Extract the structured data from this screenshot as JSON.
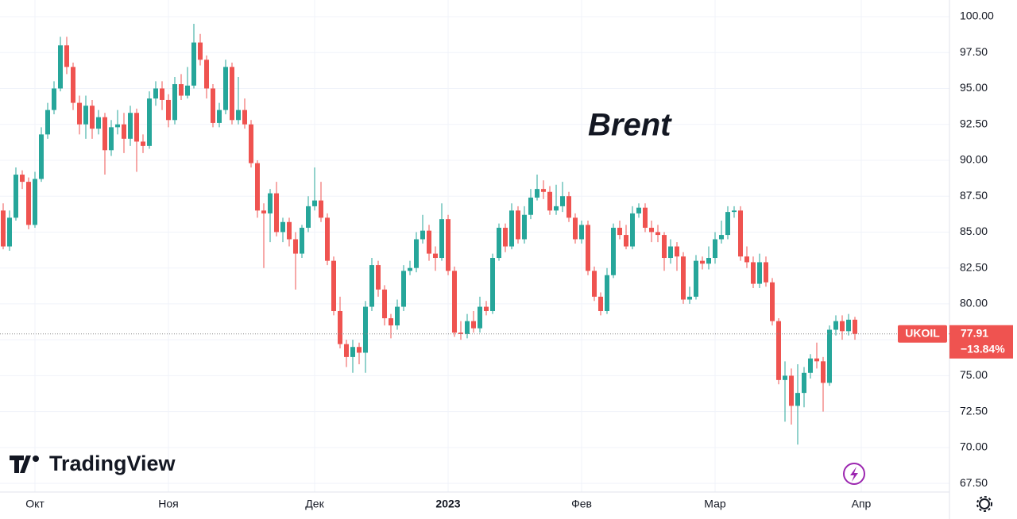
{
  "chart_data": {
    "type": "candlestick",
    "title": "Brent",
    "symbol": "UKOIL",
    "brand": "TradingView",
    "change": -13.84,
    "change_label": "−13.84%",
    "up_color": "#26a69a",
    "down_color": "#ef5350",
    "grid": true,
    "ylim": [
      66.9,
      101.16
    ],
    "yticks": [
      {
        "value": 67.5,
        "label": "67.50"
      },
      {
        "value": 70,
        "label": "70.00"
      },
      {
        "value": 72.5,
        "label": "72.50"
      },
      {
        "value": 75,
        "label": "75.00"
      },
      {
        "value": 77.5,
        "label": "77.50"
      },
      {
        "value": 80,
        "label": "80.00"
      },
      {
        "value": 82.5,
        "label": "82.50"
      },
      {
        "value": 85,
        "label": "85.00"
      },
      {
        "value": 87.5,
        "label": "87.50"
      },
      {
        "value": 90,
        "label": "90.00"
      },
      {
        "value": 92.5,
        "label": "92.50"
      },
      {
        "value": 95,
        "label": "95.00"
      },
      {
        "value": 97.5,
        "label": "97.50"
      },
      {
        "value": 100,
        "label": "100.00"
      }
    ],
    "categories": [
      null,
      null,
      null,
      null,
      null,
      "Окт",
      null,
      null,
      null,
      null,
      null,
      null,
      null,
      null,
      null,
      null,
      null,
      null,
      null,
      null,
      null,
      null,
      null,
      null,
      null,
      null,
      "Ноя",
      null,
      null,
      null,
      null,
      null,
      null,
      null,
      null,
      null,
      null,
      null,
      null,
      null,
      null,
      null,
      null,
      null,
      null,
      null,
      null,
      null,
      null,
      "Дек",
      null,
      null,
      null,
      null,
      null,
      null,
      null,
      null,
      null,
      null,
      null,
      null,
      null,
      null,
      null,
      null,
      null,
      null,
      null,
      null,
      "2023",
      null,
      null,
      null,
      null,
      null,
      null,
      null,
      null,
      null,
      null,
      null,
      null,
      null,
      null,
      null,
      null,
      null,
      null,
      null,
      null,
      "Фев",
      null,
      null,
      null,
      null,
      null,
      null,
      null,
      null,
      null,
      null,
      null,
      null,
      null,
      null,
      null,
      null,
      null,
      null,
      null,
      null,
      "Мар",
      null,
      null,
      null,
      null,
      null,
      null,
      null,
      null,
      null,
      null,
      null,
      null,
      null,
      null,
      null,
      null,
      null,
      null,
      null,
      null,
      null,
      null,
      "Апр"
    ],
    "open": [
      86.5,
      84,
      86,
      89,
      88.5,
      85.5,
      88.7,
      91.8,
      93.5,
      95,
      98,
      96.5,
      94,
      92.5,
      93.8,
      92.2,
      93,
      90.7,
      92.3,
      92.5,
      91.5,
      93.3,
      91.3,
      91,
      94.3,
      95,
      94.2,
      92.8,
      95.3,
      94.5,
      95.2,
      98.2,
      97,
      95,
      92.6,
      93.5,
      96.5,
      92.8,
      93.5,
      92.5,
      89.8,
      86.5,
      86.3,
      87.7,
      85,
      85.7,
      84.5,
      83.5,
      85.3,
      86.8,
      87.2,
      86,
      83,
      79.5,
      77.2,
      76.3,
      77,
      76.6,
      79.8,
      82.7,
      81,
      79,
      78.5,
      79.8,
      82.3,
      82.5,
      84.5,
      85.1,
      83.5,
      83.2,
      85.9,
      82.3,
      78,
      77.9,
      78.8,
      78.3,
      79.8,
      79.5,
      83.2,
      85.3,
      84,
      86.5,
      84.5,
      86.2,
      87.4,
      88,
      87.8,
      86.5,
      86.8,
      87.5,
      86,
      84.5,
      85.5,
      82.3,
      80.5,
      79.5,
      82,
      85.3,
      84.8,
      84,
      86.3,
      86.7,
      85.3,
      85,
      84.8,
      83.2,
      84,
      83.3,
      80.3,
      80.5,
      83,
      82.8,
      83.2,
      84.5,
      84.8,
      86.4,
      86.5,
      83.3,
      82.9,
      81.4,
      82.9,
      81.5,
      78.8,
      74.7,
      75,
      72.9,
      73.8,
      75.2,
      76.2,
      76,
      74.5,
      78.2,
      78.8,
      78.1,
      78.9,
      null
    ],
    "high": [
      87,
      86.5,
      89.5,
      89.3,
      88.8,
      89.2,
      92.3,
      94,
      95.5,
      98.6,
      98.6,
      96.8,
      94.5,
      94.5,
      94.2,
      93.5,
      93.3,
      92.8,
      93.5,
      93.3,
      93.8,
      93.6,
      91.8,
      94.8,
      95.5,
      95.5,
      94.6,
      95.8,
      96,
      96.5,
      99.5,
      98.8,
      97.3,
      95.3,
      94,
      97,
      96.8,
      95.8,
      94.3,
      92.8,
      90,
      87,
      88,
      88.5,
      86,
      86,
      85,
      85.5,
      87.5,
      89.5,
      88.5,
      86.3,
      83.3,
      80.5,
      77.5,
      77.5,
      77.3,
      80.2,
      83.2,
      83,
      81.3,
      79.3,
      80.3,
      82.7,
      83,
      85,
      86.2,
      85.5,
      84,
      87,
      86.2,
      82.6,
      78.8,
      79.3,
      79.5,
      80.5,
      80.2,
      83.5,
      85.6,
      85.6,
      87,
      86.8,
      86.8,
      88,
      89,
      88.6,
      88.2,
      88.3,
      88.5,
      87.8,
      86.3,
      85.8,
      85.8,
      82.6,
      80.8,
      82.5,
      85.6,
      85.8,
      85.5,
      86.8,
      87,
      87,
      85.8,
      85.5,
      85,
      84.5,
      84.3,
      83.6,
      81.2,
      83.4,
      83.3,
      84,
      85,
      85.8,
      86.8,
      86.8,
      86.8,
      84,
      83.3,
      83.5,
      83.3,
      81.8,
      79,
      76,
      75.5,
      75.8,
      75.6,
      76.5,
      77.3,
      76.3,
      78.5,
      79.2,
      79.2,
      79.3,
      79.1,
      null
    ],
    "low": [
      83.8,
      83.7,
      85.8,
      88,
      85.2,
      85.3,
      88.5,
      91.5,
      93.2,
      94.8,
      96,
      93.5,
      91.8,
      91.5,
      91.5,
      91.8,
      89,
      90.3,
      91.8,
      90.5,
      91,
      89.2,
      90.5,
      90.8,
      93.8,
      93.5,
      92.3,
      92.5,
      94.2,
      94.3,
      95,
      96.6,
      94.3,
      92.3,
      92.3,
      93.2,
      92.5,
      92.5,
      92.2,
      89.5,
      86,
      82.5,
      84.3,
      84.7,
      84.3,
      84,
      81,
      83.2,
      85,
      86.5,
      85.7,
      82.7,
      79.2,
      76.9,
      75.6,
      75.2,
      75.8,
      75.2,
      79.5,
      80.5,
      78.5,
      77.6,
      78.2,
      79.5,
      82,
      82.2,
      84.2,
      83,
      82.3,
      83,
      82,
      77.7,
      77.5,
      77.6,
      78,
      78,
      79.2,
      79.3,
      83,
      83.6,
      83.8,
      84.2,
      84.2,
      85.9,
      87.2,
      87.3,
      86.2,
      86.2,
      86.4,
      85.7,
      84.2,
      84.2,
      82,
      80.2,
      79.2,
      79.3,
      81.8,
      84.5,
      83.8,
      83.8,
      86,
      85,
      84.3,
      84.3,
      82.3,
      82.8,
      82.3,
      80,
      80,
      80.3,
      82.4,
      82.4,
      82.8,
      84.2,
      84.5,
      86,
      83,
      82.5,
      81.1,
      81.1,
      81.2,
      78.5,
      74.4,
      71.8,
      71.6,
      70.2,
      72.8,
      74.8,
      75.5,
      72.5,
      74.3,
      77.8,
      77.5,
      77.8,
      77.5,
      null
    ],
    "close": [
      84,
      86,
      89,
      88.5,
      85.5,
      88.7,
      91.8,
      93.5,
      95,
      98,
      96.5,
      94,
      92.5,
      93.8,
      92.2,
      93,
      90.7,
      92.3,
      92.5,
      91.5,
      93.3,
      91.3,
      91,
      94.3,
      95,
      94.2,
      92.8,
      95.3,
      94.5,
      95.2,
      98.2,
      97,
      95,
      92.6,
      93.5,
      96.5,
      92.8,
      93.5,
      92.5,
      89.8,
      86.5,
      86.3,
      87.7,
      85,
      85.7,
      84.5,
      83.5,
      85.3,
      86.8,
      87.2,
      86,
      83,
      79.5,
      77.2,
      76.3,
      77,
      76.6,
      79.8,
      82.7,
      81,
      79,
      78.5,
      79.8,
      82.3,
      82.5,
      84.5,
      85.1,
      83.5,
      83.2,
      85.9,
      82.3,
      78,
      77.9,
      78.8,
      78.3,
      79.8,
      79.5,
      83.2,
      85.3,
      84,
      86.5,
      84.5,
      86.2,
      87.4,
      88,
      87.8,
      86.5,
      86.8,
      87.5,
      86,
      84.5,
      85.5,
      82.3,
      80.5,
      79.5,
      82,
      85.3,
      84.8,
      84,
      86.3,
      86.7,
      85.3,
      85,
      84.8,
      83.2,
      84,
      83.3,
      80.3,
      80.5,
      83,
      82.8,
      83.2,
      84.5,
      84.8,
      86.4,
      86.5,
      83.3,
      82.9,
      81.4,
      82.9,
      81.5,
      78.8,
      74.7,
      75,
      72.9,
      73.8,
      75.2,
      76.2,
      76,
      74.5,
      78.2,
      78.8,
      78.1,
      78.9,
      77.91,
      null
    ]
  }
}
